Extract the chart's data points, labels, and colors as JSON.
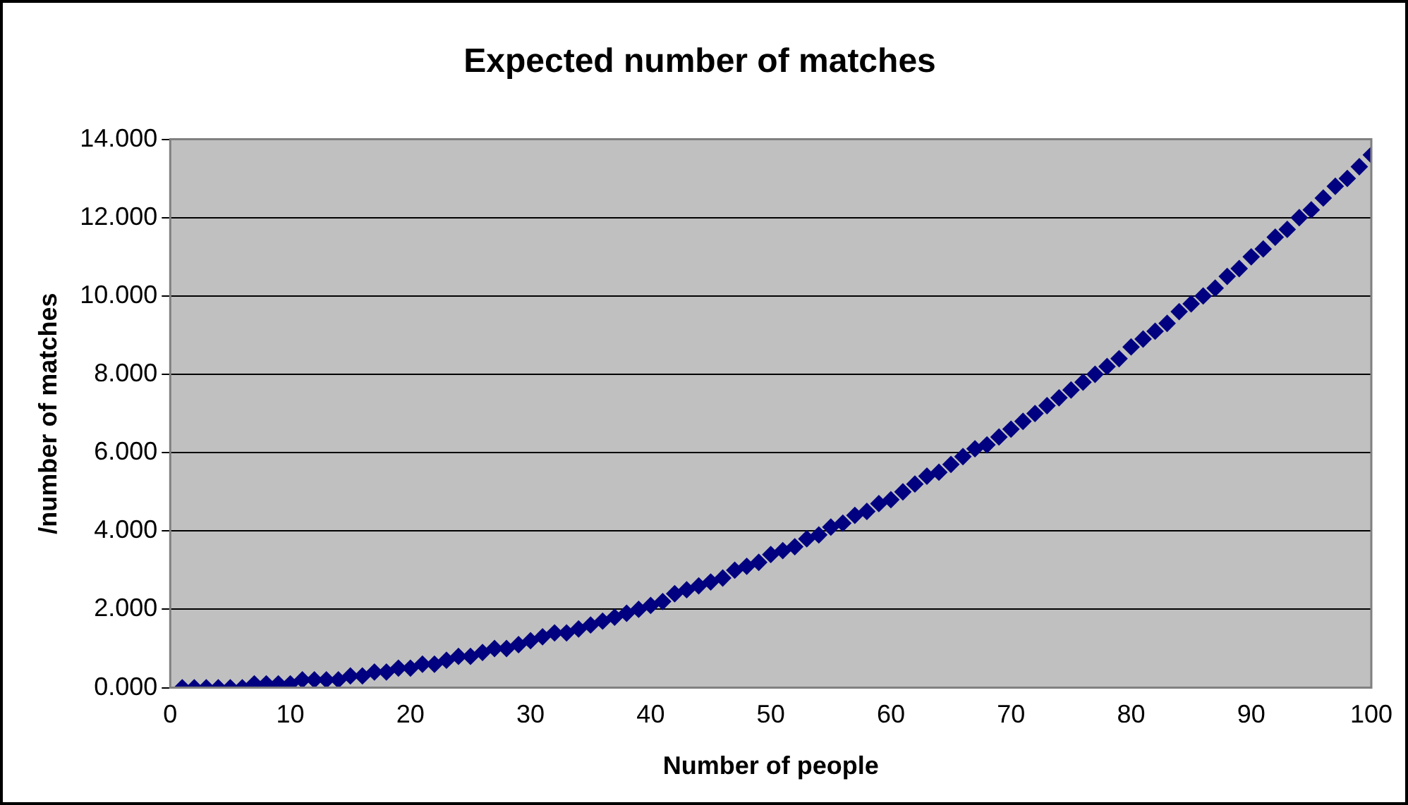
{
  "chart_data": {
    "type": "scatter",
    "title": "Expected number of matches",
    "xlabel": "Number of people",
    "ylabel": "/number of matches",
    "x": [
      1,
      2,
      3,
      4,
      5,
      6,
      7,
      8,
      9,
      10,
      11,
      12,
      13,
      14,
      15,
      16,
      17,
      18,
      19,
      20,
      21,
      22,
      23,
      24,
      25,
      26,
      27,
      28,
      29,
      30,
      31,
      32,
      33,
      34,
      35,
      36,
      37,
      38,
      39,
      40,
      41,
      42,
      43,
      44,
      45,
      46,
      47,
      48,
      49,
      50,
      51,
      52,
      53,
      54,
      55,
      56,
      57,
      58,
      59,
      60,
      61,
      62,
      63,
      64,
      65,
      66,
      67,
      68,
      69,
      70,
      71,
      72,
      73,
      74,
      75,
      76,
      77,
      78,
      79,
      80,
      81,
      82,
      83,
      84,
      85,
      86,
      87,
      88,
      89,
      90,
      91,
      92,
      93,
      94,
      95,
      96,
      97,
      98,
      99,
      100
    ],
    "series": [
      {
        "color": "#000080",
        "values": [
          0,
          0,
          0,
          0,
          0,
          0,
          0.1,
          0.1,
          0.1,
          0.1,
          0.2,
          0.2,
          0.2,
          0.2,
          0.3,
          0.3,
          0.4,
          0.4,
          0.5,
          0.5,
          0.6,
          0.6,
          0.7,
          0.8,
          0.8,
          0.9,
          1.0,
          1.0,
          1.1,
          1.2,
          1.3,
          1.4,
          1.4,
          1.5,
          1.6,
          1.7,
          1.8,
          1.9,
          2.0,
          2.1,
          2.2,
          2.4,
          2.5,
          2.6,
          2.7,
          2.8,
          3.0,
          3.1,
          3.2,
          3.4,
          3.5,
          3.6,
          3.8,
          3.9,
          4.1,
          4.2,
          4.4,
          4.5,
          4.7,
          4.8,
          5.0,
          5.2,
          5.4,
          5.5,
          5.7,
          5.9,
          6.1,
          6.2,
          6.4,
          6.6,
          6.8,
          7.0,
          7.2,
          7.4,
          7.6,
          7.8,
          8.0,
          8.2,
          8.4,
          8.7,
          8.9,
          9.1,
          9.3,
          9.6,
          9.8,
          10.0,
          10.2,
          10.5,
          10.7,
          11.0,
          11.2,
          11.5,
          11.7,
          12.0,
          12.2,
          12.5,
          12.8,
          13.0,
          13.3,
          13.6
        ]
      }
    ],
    "xlim": [
      0,
      100
    ],
    "xticks": [
      0,
      10,
      20,
      30,
      40,
      50,
      60,
      70,
      80,
      90,
      100
    ],
    "ylim": [
      0,
      14
    ],
    "yticks": [
      {
        "value": 0,
        "label": "0.000"
      },
      {
        "value": 2,
        "label": "2.000"
      },
      {
        "value": 4,
        "label": "4.000"
      },
      {
        "value": 6,
        "label": "6.000"
      },
      {
        "value": 8,
        "label": "8.000"
      },
      {
        "value": 10,
        "label": "10.000"
      },
      {
        "value": 12,
        "label": "12.000"
      },
      {
        "value": 14,
        "label": "14.000"
      }
    ],
    "grid": "y",
    "legend": false,
    "marker": "diamond"
  }
}
